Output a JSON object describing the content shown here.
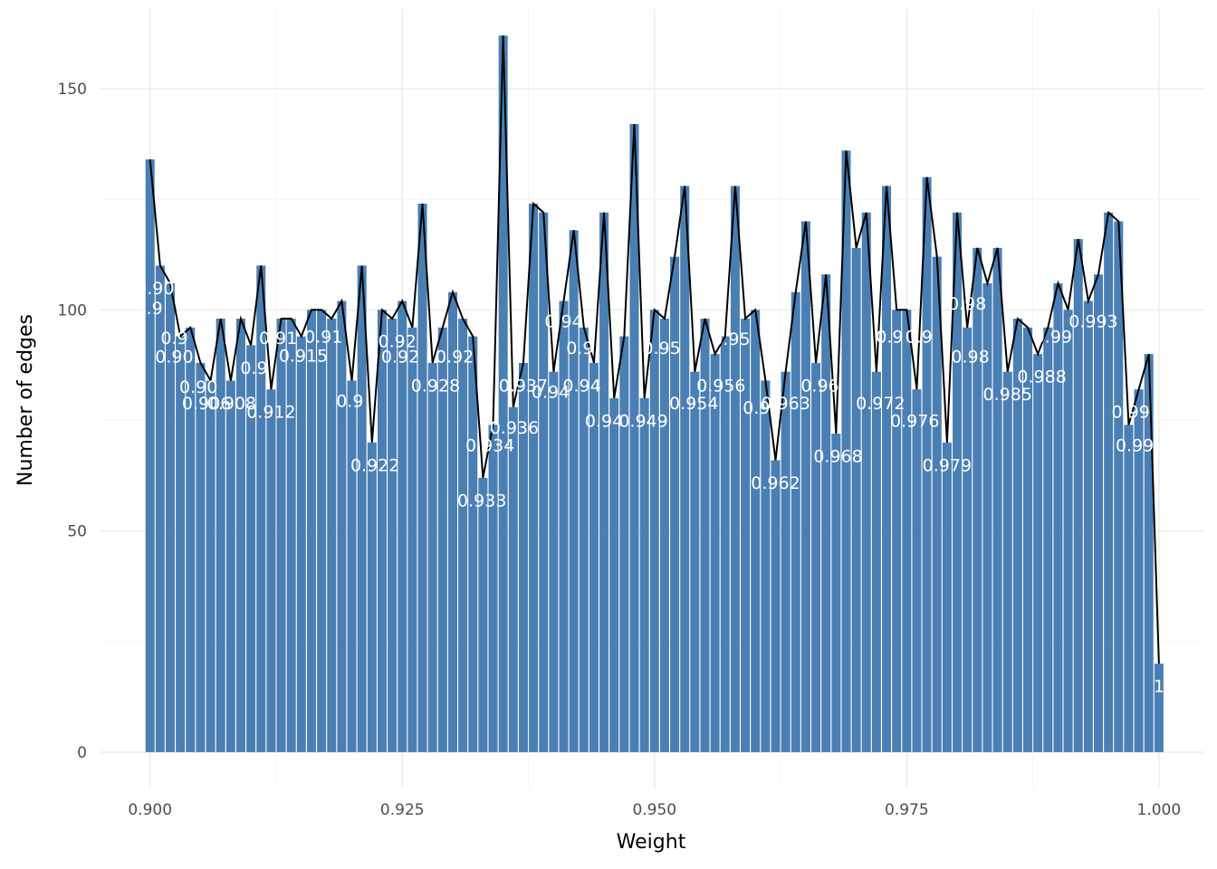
{
  "chart_data": {
    "type": "bar",
    "title": "",
    "xlabel": "Weight",
    "ylabel": "Number of edges",
    "xlim": [
      0.895,
      1.0045
    ],
    "ylim": [
      -8,
      168
    ],
    "x_ticks": [
      0.9,
      0.925,
      0.95,
      0.975,
      1.0
    ],
    "x_tick_labels": [
      "0.900",
      "0.925",
      "0.950",
      "0.975",
      "1.000"
    ],
    "y_ticks": [
      0,
      50,
      100,
      150
    ],
    "y_tick_labels": [
      "0",
      "50",
      "100",
      "150"
    ],
    "grid": true,
    "bar_color": "#4a7fb3",
    "line_color": "#000000",
    "x": [
      0.9,
      0.901,
      0.902,
      0.903,
      0.904,
      0.905,
      0.906,
      0.907,
      0.908,
      0.909,
      0.91,
      0.911,
      0.912,
      0.913,
      0.914,
      0.915,
      0.916,
      0.917,
      0.918,
      0.919,
      0.92,
      0.921,
      0.922,
      0.923,
      0.924,
      0.925,
      0.926,
      0.927,
      0.928,
      0.929,
      0.93,
      0.931,
      0.932,
      0.933,
      0.934,
      0.935,
      0.936,
      0.937,
      0.938,
      0.939,
      0.94,
      0.941,
      0.942,
      0.943,
      0.944,
      0.945,
      0.946,
      0.947,
      0.948,
      0.949,
      0.95,
      0.951,
      0.952,
      0.953,
      0.954,
      0.955,
      0.956,
      0.957,
      0.958,
      0.959,
      0.96,
      0.961,
      0.962,
      0.963,
      0.964,
      0.965,
      0.966,
      0.967,
      0.968,
      0.969,
      0.97,
      0.971,
      0.972,
      0.973,
      0.974,
      0.975,
      0.976,
      0.977,
      0.978,
      0.979,
      0.98,
      0.981,
      0.982,
      0.983,
      0.984,
      0.985,
      0.986,
      0.987,
      0.988,
      0.989,
      0.99,
      0.991,
      0.992,
      0.993,
      0.994,
      0.995,
      0.996,
      0.997,
      0.998,
      0.999,
      1.0
    ],
    "values": [
      134,
      110,
      106,
      94,
      96,
      88,
      84,
      98,
      84,
      98,
      92,
      110,
      82,
      98,
      98,
      94,
      100,
      100,
      98,
      102,
      84,
      110,
      70,
      100,
      98,
      102,
      96,
      124,
      88,
      96,
      104,
      98,
      94,
      62,
      74,
      162,
      78,
      88,
      124,
      122,
      86,
      102,
      118,
      96,
      88,
      122,
      80,
      94,
      142,
      80,
      100,
      98,
      112,
      128,
      86,
      98,
      90,
      94,
      128,
      98,
      100,
      84,
      66,
      86,
      104,
      120,
      88,
      108,
      72,
      136,
      114,
      122,
      86,
      128,
      100,
      100,
      82,
      130,
      112,
      70,
      122,
      96,
      114,
      106,
      114,
      86,
      98,
      96,
      90,
      96,
      106,
      100,
      116,
      102,
      108,
      122,
      120,
      74,
      82,
      90,
      20
    ],
    "labels": [
      {
        "text": "0.90",
        "x": 0.9005,
        "y": 105.0
      },
      {
        "text": "0.9",
        "x": 0.8999,
        "y": 100.5
      },
      {
        "text": "0.9",
        "x": 0.9024,
        "y": 93.7
      },
      {
        "text": "0.90",
        "x": 0.9024,
        "y": 89.5
      },
      {
        "text": "0.90",
        "x": 0.9048,
        "y": 82.7
      },
      {
        "text": "0.906",
        "x": 0.9056,
        "y": 79.0
      },
      {
        "text": "0.908",
        "x": 0.9081,
        "y": 79.0
      },
      {
        "text": "0.912",
        "x": 0.912,
        "y": 77.0
      },
      {
        "text": "0.9",
        "x": 0.9103,
        "y": 87.0
      },
      {
        "text": "0.915",
        "x": 0.9152,
        "y": 89.7
      },
      {
        "text": "0.91",
        "x": 0.9127,
        "y": 93.7
      },
      {
        "text": "0.91",
        "x": 0.9172,
        "y": 94.0
      },
      {
        "text": "0.9",
        "x": 0.9198,
        "y": 79.5
      },
      {
        "text": "0.922",
        "x": 0.9223,
        "y": 65.0
      },
      {
        "text": "0.92",
        "x": 0.9245,
        "y": 93.0
      },
      {
        "text": "0.92",
        "x": 0.9248,
        "y": 89.5
      },
      {
        "text": "0.928",
        "x": 0.9283,
        "y": 83.0
      },
      {
        "text": "0.92",
        "x": 0.9302,
        "y": 89.5
      },
      {
        "text": "0.933",
        "x": 0.9329,
        "y": 57.0
      },
      {
        "text": "0.934",
        "x": 0.9337,
        "y": 69.5
      },
      {
        "text": "0.936",
        "x": 0.9361,
        "y": 73.5
      },
      {
        "text": "0.937",
        "x": 0.937,
        "y": 83.0
      },
      {
        "text": "0.94",
        "x": 0.9397,
        "y": 81.5
      },
      {
        "text": "0.94",
        "x": 0.941,
        "y": 97.5
      },
      {
        "text": "0.94",
        "x": 0.9428,
        "y": 83.0
      },
      {
        "text": "0.9",
        "x": 0.9426,
        "y": 91.5
      },
      {
        "text": "0.94",
        "x": 0.945,
        "y": 75.0
      },
      {
        "text": "0.949",
        "x": 0.9489,
        "y": 75.0
      },
      {
        "text": "0.95",
        "x": 0.9507,
        "y": 91.5
      },
      {
        "text": "0.954",
        "x": 0.9539,
        "y": 79.0
      },
      {
        "text": "0.956",
        "x": 0.9566,
        "y": 83.0
      },
      {
        "text": "0.95",
        "x": 0.9576,
        "y": 93.5
      },
      {
        "text": "0.9",
        "x": 0.9601,
        "y": 78.0
      },
      {
        "text": "0.962",
        "x": 0.962,
        "y": 61.0
      },
      {
        "text": "0.963",
        "x": 0.963,
        "y": 79.0
      },
      {
        "text": "0.96",
        "x": 0.9664,
        "y": 83.0
      },
      {
        "text": "0.968",
        "x": 0.9682,
        "y": 67.0
      },
      {
        "text": "0.972",
        "x": 0.9724,
        "y": 79.0
      },
      {
        "text": "0.9",
        "x": 0.9733,
        "y": 94.0
      },
      {
        "text": "0.976",
        "x": 0.9758,
        "y": 75.0
      },
      {
        "text": "0.9",
        "x": 0.9762,
        "y": 94.0
      },
      {
        "text": "0.979",
        "x": 0.979,
        "y": 65.0
      },
      {
        "text": "0.98",
        "x": 0.981,
        "y": 101.5
      },
      {
        "text": "0.98",
        "x": 0.9813,
        "y": 89.5
      },
      {
        "text": "0.985",
        "x": 0.985,
        "y": 81.0
      },
      {
        "text": "0.988",
        "x": 0.9884,
        "y": 85.0
      },
      {
        "text": "0.99",
        "x": 0.9895,
        "y": 94.0
      },
      {
        "text": "0.993",
        "x": 0.9935,
        "y": 97.5
      },
      {
        "text": "0.99",
        "x": 0.9972,
        "y": 77.0
      },
      {
        "text": "0.99",
        "x": 0.9976,
        "y": 69.5
      },
      {
        "text": "1",
        "x": 1.0,
        "y": 15.0
      }
    ]
  }
}
